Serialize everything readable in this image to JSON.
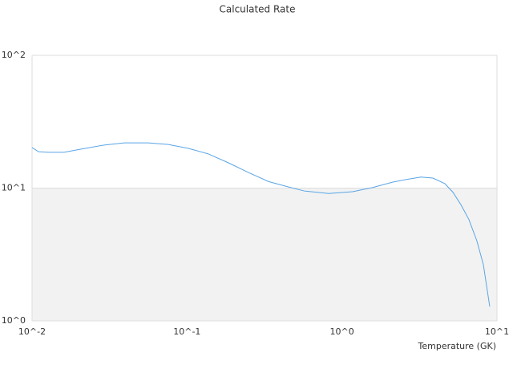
{
  "chart_data": {
    "type": "line",
    "title": "Calculated Rate",
    "x_label": "Temperature (GK)",
    "x": [
      0.01,
      0.011,
      0.0127,
      0.0161,
      0.0204,
      0.0292,
      0.0394,
      0.0562,
      0.0757,
      0.102,
      0.137,
      0.185,
      0.249,
      0.336,
      0.452,
      0.574,
      0.82,
      1.17,
      1.58,
      2.13,
      2.7,
      3.23,
      3.86,
      4.61,
      5.2,
      5.85,
      6.59,
      7.42,
      8.17,
      8.98
    ],
    "series": [
      {
        "color": "#5aa5e6",
        "values": [
          20.2,
          18.8,
          18.6,
          18.6,
          19.6,
          21.1,
          21.9,
          21.9,
          21.3,
          19.9,
          18.1,
          15.5,
          13.1,
          11.2,
          10.2,
          9.5,
          9.1,
          9.4,
          10.1,
          11.1,
          11.7,
          12.1,
          11.9,
          10.8,
          9.3,
          7.5,
          5.8,
          4.0,
          2.65,
          1.28
        ]
      }
    ],
    "xscale": "log",
    "yscale": "log",
    "xlim": [
      0.01,
      10
    ],
    "ylim": [
      1,
      100
    ],
    "xticks": [
      {
        "value": 0.01,
        "label": "10^-2"
      },
      {
        "value": 0.1,
        "label": "10^-1"
      },
      {
        "value": 1,
        "label": "10^0"
      },
      {
        "value": 10,
        "label": "10^1"
      }
    ],
    "yticks": [
      {
        "value": 1,
        "label": "10^0"
      },
      {
        "value": 10,
        "label": "10^1"
      },
      {
        "value": 100,
        "label": "10^2"
      }
    ],
    "band_color": "#f2f2f2"
  }
}
